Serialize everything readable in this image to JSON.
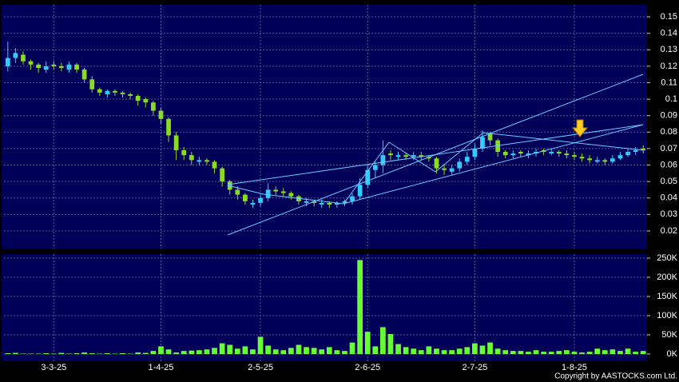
{
  "chart_data": [
    {
      "type": "candlestick",
      "up_color": "#33ccff",
      "down_color": "#88dd22",
      "grid": true,
      "ylim": [
        0.0093,
        0.1573
      ],
      "yticks": [
        0.02,
        0.03,
        0.04,
        0.05,
        0.06,
        0.07,
        0.08,
        0.09,
        0.1,
        0.11,
        0.12,
        0.13,
        0.14,
        0.15
      ],
      "open": [
        0.12,
        0.125,
        0.127,
        0.123,
        0.121,
        0.118,
        0.121,
        0.12,
        0.118,
        0.121,
        0.118,
        0.112,
        0.106,
        0.103,
        0.105,
        0.104,
        0.103,
        0.102,
        0.1,
        0.098,
        0.093,
        0.088,
        0.078,
        0.069,
        0.066,
        0.062,
        0.063,
        0.062,
        0.058,
        0.05,
        0.045,
        0.042,
        0.036,
        0.037,
        0.04,
        0.045,
        0.044,
        0.043,
        0.041,
        0.037,
        0.038,
        0.036,
        0.037,
        0.036,
        0.037,
        0.038,
        0.041,
        0.048,
        0.057,
        0.06,
        0.067,
        0.065,
        0.066,
        0.065,
        0.066,
        0.065,
        0.064,
        0.058,
        0.056,
        0.058,
        0.062,
        0.065,
        0.07,
        0.079,
        0.075,
        0.068,
        0.066,
        0.068,
        0.066,
        0.067,
        0.069,
        0.067,
        0.068,
        0.067,
        0.066,
        0.065,
        0.064,
        0.062,
        0.063,
        0.062,
        0.064,
        0.066,
        0.068,
        0.07
      ],
      "high": [
        0.135,
        0.131,
        0.129,
        0.124,
        0.122,
        0.123,
        0.123,
        0.122,
        0.123,
        0.122,
        0.119,
        0.114,
        0.107,
        0.106,
        0.106,
        0.105,
        0.104,
        0.103,
        0.101,
        0.099,
        0.095,
        0.089,
        0.08,
        0.071,
        0.068,
        0.065,
        0.064,
        0.063,
        0.059,
        0.051,
        0.047,
        0.043,
        0.039,
        0.042,
        0.049,
        0.047,
        0.046,
        0.044,
        0.042,
        0.04,
        0.039,
        0.039,
        0.038,
        0.038,
        0.039,
        0.043,
        0.052,
        0.06,
        0.062,
        0.075,
        0.069,
        0.068,
        0.067,
        0.068,
        0.068,
        0.066,
        0.065,
        0.06,
        0.06,
        0.064,
        0.068,
        0.073,
        0.081,
        0.08,
        0.076,
        0.069,
        0.069,
        0.069,
        0.069,
        0.07,
        0.07,
        0.07,
        0.069,
        0.069,
        0.068,
        0.067,
        0.066,
        0.065,
        0.064,
        0.066,
        0.068,
        0.07,
        0.071,
        0.072
      ],
      "low": [
        0.117,
        0.122,
        0.121,
        0.118,
        0.116,
        0.116,
        0.118,
        0.117,
        0.116,
        0.116,
        0.11,
        0.104,
        0.102,
        0.101,
        0.102,
        0.101,
        0.1,
        0.096,
        0.095,
        0.09,
        0.085,
        0.074,
        0.063,
        0.063,
        0.06,
        0.06,
        0.06,
        0.055,
        0.047,
        0.042,
        0.039,
        0.036,
        0.034,
        0.035,
        0.038,
        0.042,
        0.041,
        0.039,
        0.036,
        0.035,
        0.035,
        0.034,
        0.034,
        0.034,
        0.035,
        0.036,
        0.039,
        0.046,
        0.052,
        0.055,
        0.063,
        0.063,
        0.063,
        0.063,
        0.063,
        0.062,
        0.055,
        0.054,
        0.054,
        0.056,
        0.06,
        0.063,
        0.068,
        0.072,
        0.065,
        0.064,
        0.064,
        0.065,
        0.064,
        0.065,
        0.066,
        0.066,
        0.065,
        0.064,
        0.063,
        0.062,
        0.061,
        0.061,
        0.06,
        0.061,
        0.063,
        0.065,
        0.066,
        0.067
      ],
      "close": [
        0.125,
        0.128,
        0.123,
        0.121,
        0.119,
        0.12,
        0.12,
        0.119,
        0.121,
        0.118,
        0.112,
        0.106,
        0.104,
        0.105,
        0.104,
        0.103,
        0.102,
        0.099,
        0.098,
        0.093,
        0.088,
        0.078,
        0.069,
        0.066,
        0.063,
        0.063,
        0.062,
        0.058,
        0.05,
        0.045,
        0.042,
        0.038,
        0.037,
        0.04,
        0.045,
        0.044,
        0.043,
        0.041,
        0.038,
        0.038,
        0.037,
        0.037,
        0.036,
        0.037,
        0.038,
        0.041,
        0.048,
        0.057,
        0.06,
        0.066,
        0.066,
        0.066,
        0.065,
        0.066,
        0.065,
        0.064,
        0.058,
        0.057,
        0.058,
        0.062,
        0.065,
        0.07,
        0.077,
        0.075,
        0.068,
        0.066,
        0.067,
        0.067,
        0.067,
        0.068,
        0.068,
        0.068,
        0.067,
        0.066,
        0.065,
        0.064,
        0.063,
        0.063,
        0.062,
        0.064,
        0.066,
        0.068,
        0.069,
        0.069
      ]
    },
    {
      "type": "bar",
      "color": "#66ff33",
      "grid": true,
      "ylim": [
        -18750,
        260400
      ],
      "yticks": [
        {
          "value": 0,
          "label": "0K"
        },
        {
          "value": 50000,
          "label": "50K"
        },
        {
          "value": 100000,
          "label": "100K"
        },
        {
          "value": 150000,
          "label": "150K"
        },
        {
          "value": 200000,
          "label": "200K"
        },
        {
          "value": 250000,
          "label": "250K"
        }
      ],
      "categories": [
        null,
        null,
        null,
        null,
        null,
        null,
        "3-3-25",
        null,
        null,
        null,
        null,
        null,
        null,
        null,
        null,
        null,
        null,
        null,
        null,
        null,
        "1-4-25",
        null,
        null,
        null,
        null,
        null,
        null,
        null,
        null,
        null,
        null,
        null,
        null,
        "2-5-25",
        null,
        null,
        null,
        null,
        null,
        null,
        null,
        null,
        null,
        null,
        null,
        null,
        null,
        "2-6-25",
        null,
        null,
        null,
        null,
        null,
        null,
        null,
        null,
        null,
        null,
        null,
        null,
        null,
        "2-7-25",
        null,
        null,
        null,
        null,
        null,
        null,
        null,
        null,
        null,
        null,
        null,
        null,
        "1-8-25",
        null,
        null,
        null,
        null,
        null,
        null,
        null,
        null,
        null
      ],
      "values": [
        2000,
        3000,
        1000,
        1000,
        1000,
        2000,
        1000,
        3000,
        1000,
        2000,
        4000,
        2000,
        1000,
        2000,
        1000,
        2000,
        1000,
        4000,
        3000,
        8000,
        20000,
        12000,
        4000,
        8000,
        9000,
        10000,
        12000,
        16000,
        28000,
        24000,
        14000,
        20000,
        12000,
        45000,
        22000,
        12000,
        10000,
        16000,
        24000,
        18000,
        16000,
        12000,
        18000,
        10000,
        8000,
        30000,
        245000,
        58000,
        20000,
        70000,
        52000,
        26000,
        18000,
        14000,
        10000,
        20000,
        14000,
        10000,
        10000,
        14000,
        18000,
        28000,
        22000,
        30000,
        14000,
        10000,
        8000,
        8000,
        6000,
        10000,
        6000,
        6000,
        8000,
        10000,
        6000,
        4000,
        6000,
        14000,
        10000,
        12000,
        8000,
        14000,
        6000,
        8000
      ]
    }
  ],
  "footer": "Copyright by AASTOCKS.com Ltd."
}
